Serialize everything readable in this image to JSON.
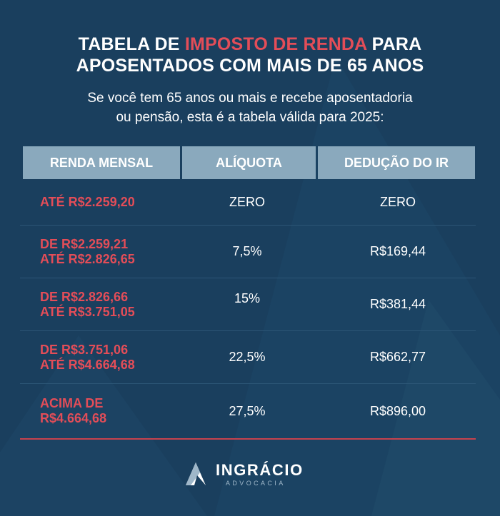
{
  "title": {
    "line1_pre": "TABELA DE ",
    "line1_accent": "IMPOSTO DE RENDA",
    "line1_post": " PARA",
    "line2": "APOSENTADOS COM MAIS DE 65 ANOS"
  },
  "subtitle": {
    "line1": "Se você tem 65 anos ou mais e recebe aposentadoria",
    "line2": "ou pensão, esta é a tabela válida para 2025:"
  },
  "table": {
    "headers": [
      "RENDA MENSAL",
      "ALÍQUOTA",
      "DEDUÇÃO DO IR"
    ],
    "rows": [
      {
        "renda1": "ATÉ R$2.259,20",
        "renda2": "",
        "aliquota": "ZERO",
        "deducao": "ZERO"
      },
      {
        "renda1": "DE R$2.259,21",
        "renda2": "ATÉ R$2.826,65",
        "aliquota": "7,5%",
        "deducao": "R$169,44"
      },
      {
        "renda1": "DE R$2.826,66",
        "renda2": "ATÉ R$3.751,05",
        "aliquota": "15%",
        "deducao": "R$381,44"
      },
      {
        "renda1": "DE R$3.751,06",
        "renda2": "ATÉ R$4.664,68",
        "aliquota": "22,5%",
        "deducao": "R$662,77"
      },
      {
        "renda1": "ACIMA DE",
        "renda2": "R$4.664,68",
        "aliquota": "27,5%",
        "deducao": "R$896,00"
      }
    ]
  },
  "logo": {
    "name": "INGRÁCIO",
    "sub": "ADVOCACIA",
    "icon": "triangle-logo-icon"
  },
  "colors": {
    "background": "#1a3f5e",
    "accent": "#e34d58",
    "header": "#8aa9bd"
  }
}
